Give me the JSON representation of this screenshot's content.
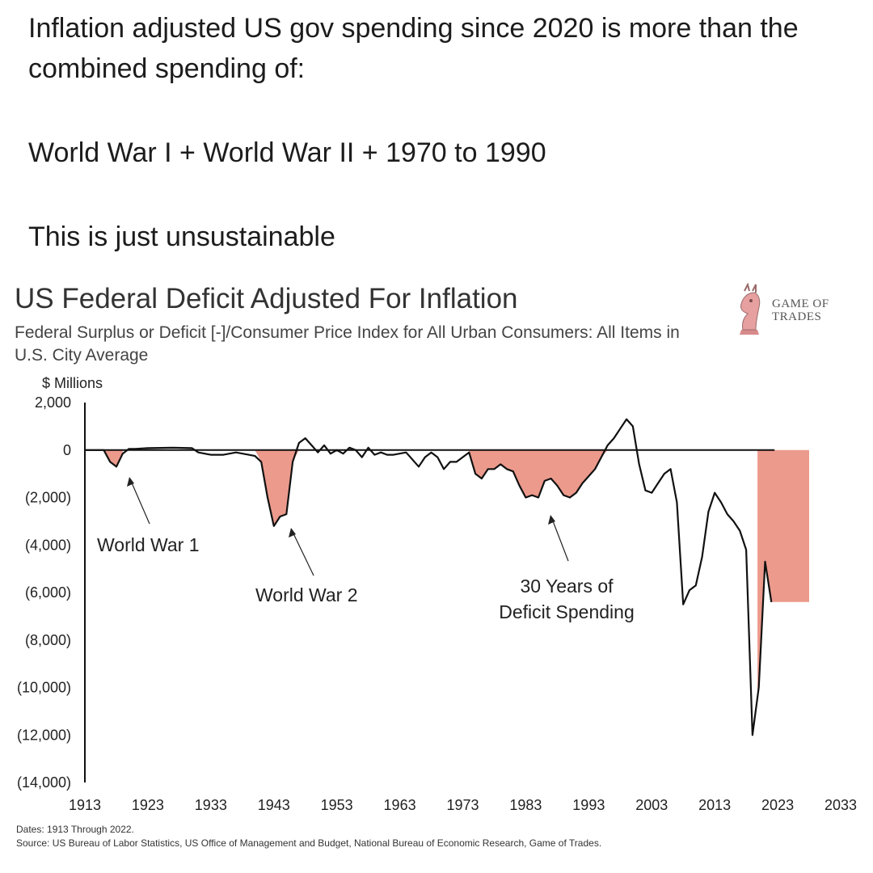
{
  "post": {
    "line1": "Inflation adjusted US gov spending since 2020 is more than the combined spending of:",
    "line2": "World War I + World War II + 1970 to 1990",
    "line3": "This is just unsustainable"
  },
  "logo": {
    "line1": "GAME OF",
    "line2": "TRADES",
    "icon": "knight-chess-icon"
  },
  "colors": {
    "fill": "#ec9a8c",
    "line": "#111111",
    "text": "#222222"
  },
  "chart_data": {
    "type": "area",
    "title": "US Federal Deficit Adjusted For Inflation",
    "subtitle": "Federal Surplus or Deficit [-]/Consumer Price Index for All Urban Consumers: All Items in U.S. City Average",
    "ylabel": "$ Millions",
    "ylim": [
      -14000,
      2000
    ],
    "xlim": [
      1913,
      2033
    ],
    "yticks": [
      "2,000",
      "0",
      "(2,000)",
      "(4,000)",
      "(6,000)",
      "(8,000)",
      "(10,000)",
      "(12,000)",
      "(14,000)"
    ],
    "xticks": [
      "1913",
      "1923",
      "1933",
      "1943",
      "1953",
      "1963",
      "1973",
      "1983",
      "1993",
      "2003",
      "2013",
      "2023",
      "2033"
    ],
    "x": [
      1913,
      1916,
      1917,
      1918,
      1919,
      1920,
      1921,
      1923,
      1927,
      1930,
      1931,
      1933,
      1935,
      1937,
      1939,
      1940,
      1941,
      1942,
      1943,
      1944,
      1945,
      1946,
      1947,
      1948,
      1949,
      1950,
      1951,
      1952,
      1953,
      1954,
      1955,
      1956,
      1957,
      1958,
      1959,
      1960,
      1961,
      1962,
      1964,
      1966,
      1967,
      1968,
      1969,
      1970,
      1971,
      1972,
      1974,
      1975,
      1976,
      1977,
      1978,
      1979,
      1980,
      1981,
      1982,
      1983,
      1984,
      1985,
      1986,
      1987,
      1988,
      1989,
      1990,
      1991,
      1992,
      1993,
      1994,
      1995,
      1996,
      1997,
      1998,
      1999,
      2000,
      2001,
      2002,
      2003,
      2004,
      2005,
      2006,
      2007,
      2008,
      2009,
      2010,
      2011,
      2012,
      2013,
      2014,
      2015,
      2016,
      2017,
      2018,
      2019,
      2020,
      2021,
      2022
    ],
    "y": [
      0,
      0,
      -500,
      -700,
      -150,
      50,
      50,
      80,
      100,
      80,
      -100,
      -200,
      -200,
      -100,
      -200,
      -250,
      -500,
      -2000,
      -3200,
      -2800,
      -2700,
      -500,
      300,
      500,
      200,
      -100,
      200,
      -150,
      0,
      -150,
      100,
      0,
      -300,
      100,
      -200,
      -100,
      -200,
      -200,
      -100,
      -700,
      -300,
      -100,
      -300,
      -800,
      -500,
      -500,
      -100,
      -1000,
      -1200,
      -800,
      -800,
      -600,
      -800,
      -900,
      -1500,
      -2000,
      -1900,
      -2000,
      -1300,
      -1200,
      -1500,
      -1900,
      -2000,
      -1800,
      -1400,
      -1100,
      -800,
      -300,
      200,
      500,
      900,
      1300,
      1000,
      -600,
      -1700,
      -1800,
      -1400,
      -1000,
      -800,
      -2200,
      -6500,
      -5900,
      -5700,
      -4500,
      -2600,
      -1800,
      -2200,
      -2700,
      -3000,
      -3400,
      -4200,
      -12000,
      -10000,
      -4700,
      -6400
    ],
    "shaded_regions": [
      {
        "name": "World War 1",
        "start": 1916,
        "end": 1919
      },
      {
        "name": "World War 2",
        "start": 1940,
        "end": 1947
      },
      {
        "name": "30 Years of Deficit Spending",
        "start": 1974,
        "end": 1998
      },
      {
        "name": "Since 2020",
        "start": 2019.8,
        "end": 2028,
        "band_to_line": true
      }
    ],
    "annotations": [
      {
        "text": "World War 1"
      },
      {
        "text": "World War 2"
      },
      {
        "text_line1": "30 Years of",
        "text_line2": "Deficit Spending"
      }
    ],
    "footer": {
      "dates": "Dates: 1913 Through 2022.",
      "source": "Source: US Bureau of Labor Statistics, US Office of Management and Budget, National Bureau of Economic Research, Game of Trades."
    }
  }
}
